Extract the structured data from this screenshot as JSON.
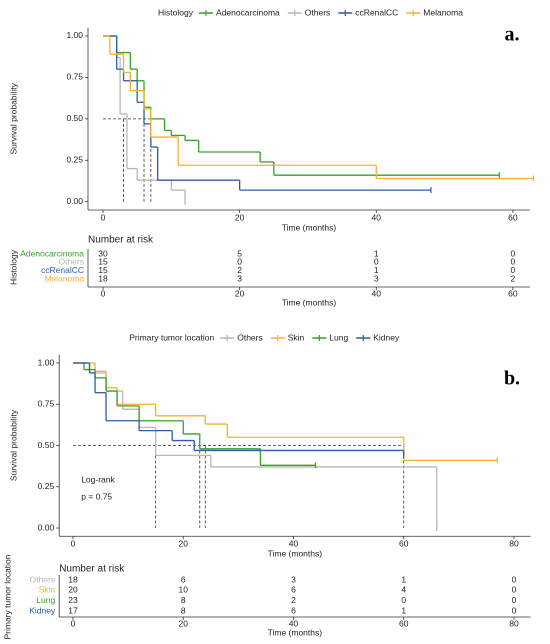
{
  "chart_data": [
    {
      "type": "step",
      "tag": "a.",
      "legend_title": "Histology",
      "ylabel": "Survival probability",
      "xlabel": "Time (months)",
      "xlim": [
        -2.2,
        62.5
      ],
      "xticks": [
        0,
        20,
        40,
        60
      ],
      "ylim": [
        -0.05,
        1.05
      ],
      "yticks": [
        {
          "value": 0,
          "label": "0.00"
        },
        {
          "value": 0.25,
          "label": "0.25"
        },
        {
          "value": 0.5,
          "label": "0.50"
        },
        {
          "value": 0.75,
          "label": "0.75"
        },
        {
          "value": 1,
          "label": "1.00"
        }
      ],
      "median_lines": {
        "y": 0.5,
        "x": [
          3,
          6,
          7
        ]
      },
      "series": [
        {
          "name": "Adenocarcinoma",
          "color": "#33a02c",
          "x": [
            0,
            2,
            4,
            5,
            6,
            7,
            9,
            10,
            12,
            14,
            23,
            25,
            58
          ],
          "values": [
            1,
            0.9,
            0.8,
            0.73,
            0.57,
            0.5,
            0.43,
            0.4,
            0.37,
            0.3,
            0.24,
            0.16,
            0.16
          ]
        },
        {
          "name": "Others",
          "color": "#b8b8b8",
          "x": [
            0,
            2,
            2.5,
            3.5,
            5,
            10,
            12
          ],
          "values": [
            1,
            0.87,
            0.53,
            0.2,
            0.13,
            0.07,
            0
          ]
        },
        {
          "name": "ccRenalCC",
          "color": "#2b5ca8",
          "x": [
            0,
            2,
            3,
            5,
            6,
            7,
            8,
            20,
            48
          ],
          "values": [
            1,
            0.8,
            0.73,
            0.6,
            0.47,
            0.33,
            0.13,
            0.07,
            0.07
          ]
        },
        {
          "name": "Melanoma",
          "color": "#f2b32a",
          "x": [
            0,
            1,
            3,
            4,
            6,
            7,
            11,
            40,
            63
          ],
          "values": [
            1,
            0.89,
            0.78,
            0.67,
            0.56,
            0.39,
            0.22,
            0.14,
            0.14
          ]
        }
      ],
      "risk_table": {
        "title": "Number at risk",
        "ylabel": "Histology",
        "xlabel": "Time (months)",
        "xticks": [
          0,
          20,
          40,
          60
        ],
        "counts": [
          [
            30,
            5,
            1,
            0
          ],
          [
            15,
            0,
            0,
            0
          ],
          [
            15,
            2,
            1,
            0
          ],
          [
            18,
            3,
            3,
            2
          ]
        ]
      }
    },
    {
      "type": "step",
      "tag": "b.",
      "legend_title": "Primary tumor location",
      "ylabel": "Survival probability",
      "xlabel": "Time (months)",
      "xlim": [
        -2.5,
        83
      ],
      "xticks": [
        0,
        20,
        40,
        60,
        80
      ],
      "ylim": [
        -0.05,
        1.05
      ],
      "yticks": [
        {
          "value": 0,
          "label": "0.00"
        },
        {
          "value": 0.25,
          "label": "0.25"
        },
        {
          "value": 0.5,
          "label": "0.50"
        },
        {
          "value": 0.75,
          "label": "0.75"
        },
        {
          "value": 1,
          "label": "1.00"
        }
      ],
      "median_lines": {
        "y": 0.5,
        "x": [
          15,
          23,
          24,
          60
        ]
      },
      "annotations": [
        "Log-rank",
        "p = 0.75"
      ],
      "series": [
        {
          "name": "Others",
          "color": "#b8b8b8",
          "x": [
            0,
            3,
            6,
            9,
            12,
            15,
            25,
            66
          ],
          "values": [
            1,
            0.94,
            0.83,
            0.72,
            0.61,
            0.44,
            0.37,
            0
          ]
        },
        {
          "name": "Skin",
          "color": "#f2b32a",
          "x": [
            0,
            4,
            6,
            8,
            15,
            24,
            28,
            60,
            77
          ],
          "values": [
            1,
            0.95,
            0.85,
            0.75,
            0.68,
            0.63,
            0.55,
            0.41,
            0.41
          ]
        },
        {
          "name": "Lung",
          "color": "#33a02c",
          "x": [
            0,
            2,
            4,
            6,
            8,
            12,
            20,
            23,
            34,
            44
          ],
          "values": [
            1,
            0.96,
            0.91,
            0.83,
            0.74,
            0.65,
            0.57,
            0.48,
            0.38,
            0.38
          ]
        },
        {
          "name": "Kidney",
          "color": "#2b5ca8",
          "x": [
            0,
            3,
            4,
            6,
            12,
            18,
            22,
            60
          ],
          "values": [
            1,
            0.94,
            0.82,
            0.65,
            0.59,
            0.53,
            0.47,
            0.44
          ]
        }
      ],
      "risk_table": {
        "title": "Number at risk",
        "ylabel": "Primary tumor location",
        "xlabel": "Time (months)",
        "xticks": [
          0,
          20,
          40,
          60,
          80
        ],
        "counts": [
          [
            18,
            6,
            3,
            1,
            0
          ],
          [
            20,
            10,
            6,
            4,
            0
          ],
          [
            23,
            8,
            2,
            0,
            0
          ],
          [
            17,
            8,
            6,
            1,
            0
          ]
        ]
      }
    }
  ]
}
